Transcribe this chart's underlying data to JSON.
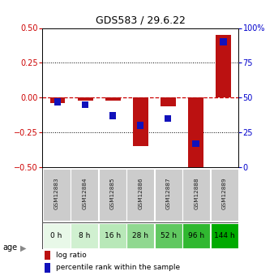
{
  "title": "GDS583 / 29.6.22",
  "samples": [
    "GSM12883",
    "GSM12884",
    "GSM12885",
    "GSM12886",
    "GSM12887",
    "GSM12888",
    "GSM12889"
  ],
  "ages": [
    "0 h",
    "8 h",
    "16 h",
    "28 h",
    "52 h",
    "96 h",
    "144 h"
  ],
  "log_ratio": [
    -0.04,
    -0.02,
    -0.02,
    -0.35,
    -0.06,
    -0.5,
    0.45
  ],
  "percentile_rank": [
    47,
    45,
    37,
    30,
    35,
    17,
    90
  ],
  "ylim_left": [
    -0.5,
    0.5
  ],
  "ylim_right": [
    0,
    100
  ],
  "yticks_left": [
    -0.5,
    -0.25,
    0,
    0.25,
    0.5
  ],
  "yticks_right": [
    0,
    25,
    50,
    75,
    100
  ],
  "yticklabels_right": [
    "0",
    "25",
    "50",
    "75",
    "100%"
  ],
  "left_tick_color": "#cc0000",
  "right_tick_color": "#0000cc",
  "bar_color_log": "#bb1111",
  "bar_color_pct": "#1111bb",
  "age_colors": [
    "#e8f8e8",
    "#d0f0d0",
    "#b8e8b8",
    "#90d890",
    "#60c860",
    "#30b830",
    "#00aa00"
  ],
  "gsm_bg_color": "#cccccc",
  "legend_log_color": "#bb1111",
  "legend_pct_color": "#1111bb",
  "zero_line_color": "#cc0000",
  "grid_color": "#000000",
  "bar_width": 0.55
}
